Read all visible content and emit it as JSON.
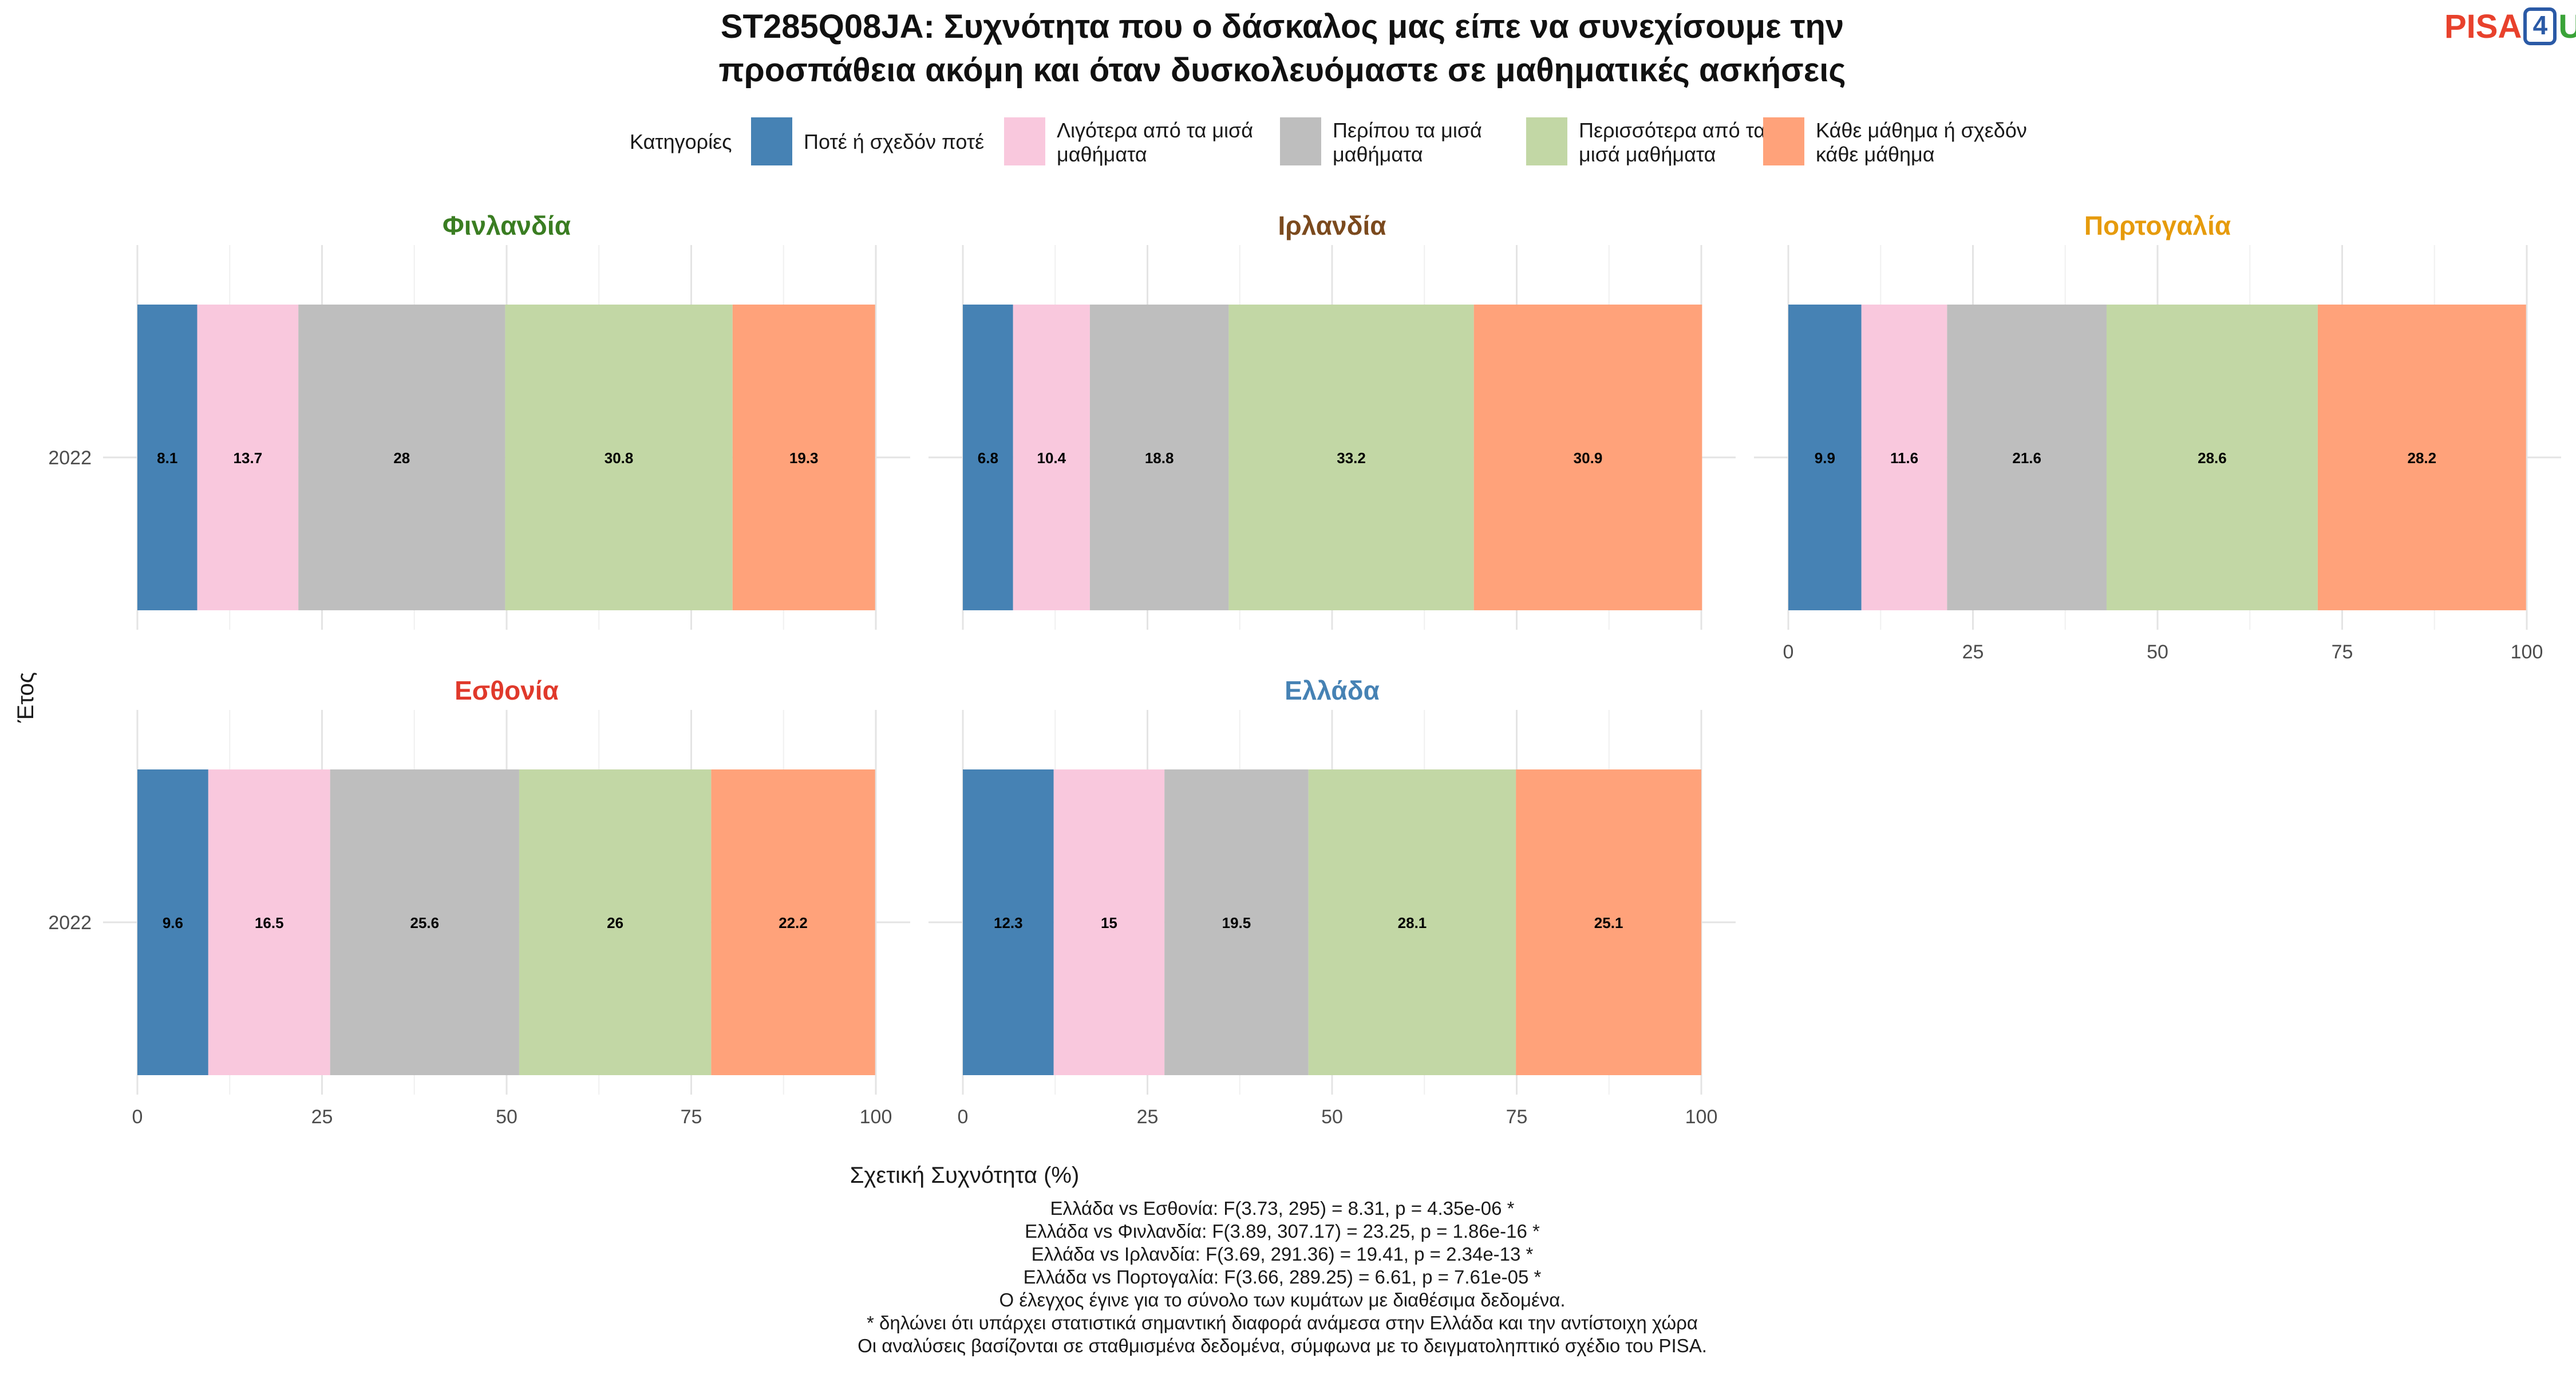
{
  "title_line1": "ST285Q08JA: Συχνότητα που ο δάσκαλος μας είπε να συνεχίσουμε την",
  "title_line2": "προσπάθεια ακόμη και όταν δυσκολευόμαστε σε μαθηματικές ασκήσεις",
  "logo": {
    "part1": "PISA",
    "part2": "4",
    "part3": "U"
  },
  "legend": {
    "title": "Κατηγορίες",
    "items": [
      {
        "lines": [
          "Ποτέ ή σχεδόν ποτέ"
        ],
        "color": "#4682b4"
      },
      {
        "lines": [
          "Λιγότερα από τα μισά",
          "μαθήματα"
        ],
        "color": "#f9c8dd"
      },
      {
        "lines": [
          "Περίπου τα μισά",
          "μαθήματα"
        ],
        "color": "#bebebe"
      },
      {
        "lines": [
          "Περισσότερα από τα",
          "μισά μαθήματα"
        ],
        "color": "#c2d7a5"
      },
      {
        "lines": [
          "Κάθε μάθημα ή σχεδόν",
          "κάθε μάθημα"
        ],
        "color": "#ffa27a"
      }
    ]
  },
  "chart_data": {
    "type": "bar",
    "orientation": "horizontal-stacked",
    "xlabel": "Σχετική Συχνότητα (%)",
    "ylabel": "Έτος",
    "xlim": [
      0,
      100
    ],
    "xticks": [
      0,
      25,
      50,
      75,
      100
    ],
    "grid": true,
    "panels": [
      {
        "name": "Φινλανδία",
        "color": "#3a7d22",
        "year": "2022",
        "values": [
          8.1,
          13.7,
          28,
          30.8,
          19.3
        ]
      },
      {
        "name": "Ιρλανδία",
        "color": "#7b4a1e",
        "year": "2022",
        "values": [
          6.8,
          10.4,
          18.8,
          33.2,
          30.9
        ]
      },
      {
        "name": "Πορτογαλία",
        "color": "#e69b0c",
        "year": "2022",
        "values": [
          9.9,
          11.6,
          21.6,
          28.6,
          28.2
        ]
      },
      {
        "name": "Εσθονία",
        "color": "#e0392b",
        "year": "2022",
        "values": [
          9.6,
          16.5,
          25.6,
          26,
          22.2
        ]
      },
      {
        "name": "Ελλάδα",
        "color": "#4682b4",
        "year": "2022",
        "values": [
          12.3,
          15,
          19.5,
          28.1,
          25.1
        ]
      }
    ]
  },
  "footnotes": [
    "Ελλάδα vs Εσθονία: F(3.73, 295) = 8.31, p = 4.35e-06 *",
    "Ελλάδα vs Φινλανδία: F(3.89, 307.17) = 23.25, p = 1.86e-16 *",
    "Ελλάδα vs Ιρλανδία: F(3.69, 291.36) = 19.41, p = 2.34e-13 *",
    "Ελλάδα vs Πορτογαλία: F(3.66, 289.25) = 6.61, p = 7.61e-05 *",
    "Ο έλεγχος έγινε για το σύνολο των κυμάτων με διαθέσιμα δεδομένα.",
    "* δηλώνει ότι υπάρχει στατιστικά σημαντική διαφορά ανάμεσα στην Ελλάδα και την αντίστοιχη χώρα",
    "Οι αναλύσεις βασίζονται σε σταθμισμένα δεδομένα, σύμφωνα με το δειγματοληπτικό σχέδιο του PISA."
  ]
}
